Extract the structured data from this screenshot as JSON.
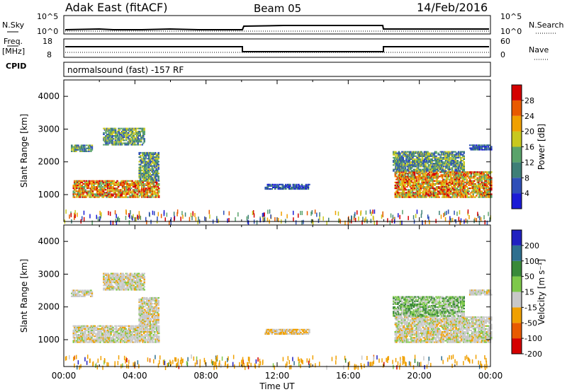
{
  "header": {
    "station": "Adak East (fitACF)",
    "beam": "Beam 05",
    "date": "14/Feb/2016"
  },
  "params": {
    "nsky_label": "N.Sky",
    "nsearch_label": "N.Search",
    "freq_label": "Freq.",
    "freq_unit": "[MHz]",
    "nave_label": "Nave",
    "cpid_label": "CPID",
    "cpid_text": "normalsound (fast) -157 RF",
    "noise_ticks_left": [
      "10^5",
      "10^0"
    ],
    "noise_ticks_right": [
      "10^5",
      "10^0"
    ],
    "freq_ticks": [
      "18",
      "8"
    ],
    "nave_ticks": [
      "60",
      "0"
    ]
  },
  "chart_data": [
    {
      "type": "heatmap",
      "name": "power",
      "ylabel": "Slant Range [km]",
      "ylim": [
        180,
        4500
      ],
      "yticks": [
        1000,
        2000,
        3000,
        4000
      ],
      "xlim": [
        0,
        24
      ],
      "xlabel": "Time UT",
      "xticks": [
        "00:00",
        "04:00",
        "08:00",
        "12:00",
        "16:00",
        "20:00",
        "00:00"
      ],
      "colorbar": {
        "label": "Power [dB]",
        "ticks": [
          "4",
          "8",
          "12",
          "16",
          "20",
          "24",
          "28"
        ],
        "colors": [
          "#1b1bd6",
          "#2f4fb8",
          "#3e7f77",
          "#5aa36b",
          "#c8c81e",
          "#f0a000",
          "#e85a00",
          "#d40000"
        ]
      },
      "regions": [
        {
          "t0": 0.5,
          "t1": 5.3,
          "r0": 900,
          "r1": 1400,
          "level": "high"
        },
        {
          "t0": 0.4,
          "t1": 1.6,
          "r0": 2300,
          "r1": 2500,
          "level": "mid"
        },
        {
          "t0": 2.2,
          "t1": 4.5,
          "r0": 2500,
          "r1": 3000,
          "level": "mid"
        },
        {
          "t0": 4.2,
          "t1": 5.3,
          "r0": 1400,
          "r1": 2300,
          "level": "mid"
        },
        {
          "t0": 11.3,
          "t1": 13.8,
          "r0": 1150,
          "r1": 1300,
          "level": "low"
        },
        {
          "t0": 18.6,
          "t1": 24.0,
          "r0": 900,
          "r1": 1700,
          "level": "high"
        },
        {
          "t0": 18.5,
          "t1": 22.5,
          "r0": 1700,
          "r1": 2300,
          "level": "mid"
        },
        {
          "t0": 22.8,
          "t1": 24.0,
          "r0": 2350,
          "r1": 2500,
          "level": "low"
        }
      ]
    },
    {
      "type": "heatmap",
      "name": "velocity",
      "ylabel": "Slant Range [km]",
      "ylim": [
        180,
        4500
      ],
      "yticks": [
        1000,
        2000,
        3000,
        4000
      ],
      "colorbar": {
        "label": "Velocity [m s⁻¹]",
        "ticks": [
          "200",
          "100",
          "50",
          "15",
          "-15",
          "-50",
          "-100",
          "-200"
        ],
        "colors": [
          "#2020c0",
          "#2f6f8f",
          "#3a8a3a",
          "#7ec84a",
          "#c8c8c8",
          "#f0a000",
          "#e85a00",
          "#d40000"
        ]
      },
      "regions": [
        {
          "t0": 0.5,
          "t1": 5.3,
          "r0": 900,
          "r1": 1400,
          "level": "grey"
        },
        {
          "t0": 0.4,
          "t1": 1.6,
          "r0": 2300,
          "r1": 2500,
          "level": "grey"
        },
        {
          "t0": 2.2,
          "t1": 4.5,
          "r0": 2500,
          "r1": 3000,
          "level": "grey"
        },
        {
          "t0": 4.2,
          "t1": 5.3,
          "r0": 1400,
          "r1": 2300,
          "level": "grey"
        },
        {
          "t0": 11.3,
          "t1": 13.8,
          "r0": 1150,
          "r1": 1300,
          "level": "orange"
        },
        {
          "t0": 18.6,
          "t1": 24.0,
          "r0": 900,
          "r1": 1700,
          "level": "grey"
        },
        {
          "t0": 18.5,
          "t1": 22.5,
          "r0": 1700,
          "r1": 2300,
          "level": "green"
        },
        {
          "t0": 22.8,
          "t1": 24.0,
          "r0": 2350,
          "r1": 2500,
          "level": "grey"
        }
      ]
    }
  ]
}
